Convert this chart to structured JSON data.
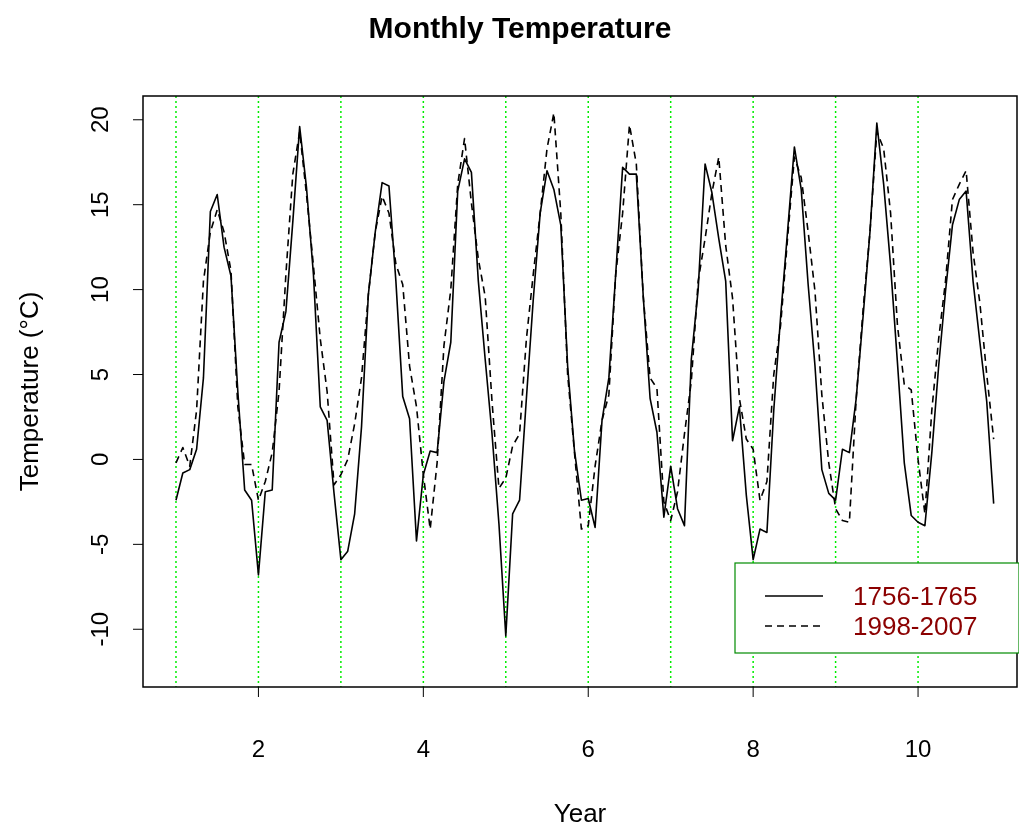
{
  "chart_data": {
    "type": "line",
    "title": "Monthly Temperature",
    "xlabel": "Year",
    "ylabel": "Temperature (°C)",
    "x": [
      1,
      1.083,
      1.167,
      1.25,
      1.333,
      1.417,
      1.5,
      1.583,
      1.667,
      1.75,
      1.833,
      1.917,
      2,
      2.083,
      2.167,
      2.25,
      2.333,
      2.417,
      2.5,
      2.583,
      2.667,
      2.75,
      2.833,
      2.917,
      3,
      3.083,
      3.167,
      3.25,
      3.333,
      3.417,
      3.5,
      3.583,
      3.667,
      3.75,
      3.833,
      3.917,
      4,
      4.083,
      4.167,
      4.25,
      4.333,
      4.417,
      4.5,
      4.583,
      4.667,
      4.75,
      4.833,
      4.917,
      5,
      5.083,
      5.167,
      5.25,
      5.333,
      5.417,
      5.5,
      5.583,
      5.667,
      5.75,
      5.833,
      5.917,
      6,
      6.083,
      6.167,
      6.25,
      6.333,
      6.417,
      6.5,
      6.583,
      6.667,
      6.75,
      6.833,
      6.917,
      7,
      7.083,
      7.167,
      7.25,
      7.333,
      7.417,
      7.5,
      7.583,
      7.667,
      7.75,
      7.833,
      7.917,
      8,
      8.083,
      8.167,
      8.25,
      8.333,
      8.417,
      8.5,
      8.583,
      8.667,
      8.75,
      8.833,
      8.917,
      9,
      9.083,
      9.167,
      9.25,
      9.333,
      9.417,
      9.5,
      9.583,
      9.667,
      9.75,
      9.833,
      9.917,
      10,
      10.083,
      10.167,
      10.25,
      10.333,
      10.417,
      10.5,
      10.583,
      10.667,
      10.75,
      10.833,
      10.917
    ],
    "series": [
      {
        "name": "1756-1765",
        "color": "#000000",
        "line_style": "solid",
        "values": [
          -2.4,
          -0.8,
          -0.6,
          0.6,
          4.8,
          14.6,
          15.6,
          12.5,
          10.8,
          4,
          -1.8,
          -2.4,
          -6.8,
          -1.9,
          -1.8,
          6.9,
          8.7,
          14,
          19.6,
          16,
          10.9,
          3.1,
          2.3,
          -2,
          -5.9,
          -5.4,
          -3.2,
          1.9,
          9.7,
          13.4,
          16.3,
          16.1,
          10.5,
          3.7,
          2.4,
          -4.8,
          -0.9,
          0.5,
          0.4,
          4.6,
          6.9,
          15.8,
          17.7,
          16.9,
          10.5,
          5.9,
          1.5,
          -3.8,
          -10.4,
          -3.2,
          -2.4,
          3.6,
          9.4,
          14.5,
          17,
          15.9,
          13.8,
          5.5,
          0.5,
          -2.4,
          -2.3,
          -4,
          2.3,
          4.8,
          10.9,
          17.2,
          16.8,
          16.8,
          9.6,
          3.6,
          1.6,
          -3.4,
          -0.4,
          -2.9,
          -3.9,
          5.9,
          10,
          17.4,
          15.7,
          13,
          10.5,
          1.1,
          3.1,
          -2.1,
          -5.9,
          -4.1,
          -4.3,
          2.9,
          8.4,
          13.4,
          18.4,
          15.9,
          10.3,
          5.5,
          -0.6,
          -2,
          -2.4,
          0.6,
          0.4,
          3.6,
          8.4,
          13.4,
          19.8,
          16.2,
          11.4,
          5.7,
          -0.2,
          -3.3,
          -3.7,
          -3.9,
          0.4,
          5.5,
          9.9,
          13.8,
          15.3,
          15.8,
          10.5,
          6.9,
          3.4,
          -2.6
        ]
      },
      {
        "name": "1998-2007",
        "color": "#000000",
        "line_style": "dashed",
        "values": [
          -0.2,
          0.7,
          -0.4,
          2.9,
          10.5,
          13.4,
          14.7,
          13.4,
          11.1,
          3.1,
          -0.3,
          -0.3,
          -2.4,
          -1.3,
          0.4,
          4,
          10.9,
          16.8,
          19.3,
          15.6,
          11.4,
          7.1,
          4,
          -1.5,
          -0.9,
          0,
          2.1,
          4.8,
          9.7,
          13.4,
          15.5,
          14.5,
          11.5,
          10.3,
          5.5,
          3.1,
          -0.9,
          -4.1,
          -0.2,
          6.7,
          10,
          16.2,
          18.9,
          15.1,
          11.8,
          9.6,
          3.4,
          -1.7,
          -1.1,
          0.8,
          1.5,
          7.1,
          10.9,
          14.5,
          18.3,
          20.4,
          14.5,
          5,
          0.4,
          -4.1,
          -3.9,
          -0.4,
          2.3,
          3.8,
          10.9,
          14.5,
          19.7,
          17.4,
          9.6,
          4.8,
          4.2,
          -2.5,
          -3.6,
          -1.9,
          1.5,
          4.6,
          10.5,
          13,
          15.7,
          17.8,
          12.6,
          9.5,
          3.6,
          1.2,
          0.6,
          -2.4,
          -1.3,
          5,
          7.9,
          13,
          17.8,
          16.6,
          13.4,
          9.9,
          3.8,
          -0.2,
          -2.9,
          -3.6,
          -3.7,
          3.6,
          8.8,
          13.4,
          19.3,
          18.3,
          14.5,
          7.9,
          4.4,
          4.1,
          0,
          -3.2,
          2.9,
          7.1,
          10.5,
          15.3,
          16.2,
          17,
          12.2,
          9.2,
          5,
          1.2
        ]
      }
    ],
    "xlim": [
      0.6,
      11.2
    ],
    "xticks": [
      2,
      4,
      6,
      8,
      10
    ],
    "ylim": [
      -13.4,
      21.4
    ],
    "yticks": [
      -10,
      -5,
      0,
      5,
      10,
      15,
      20
    ],
    "ref_lines": [
      {
        "axis": "x",
        "value": 1,
        "color": "#00ee00",
        "line_style": "dotted"
      },
      {
        "axis": "x",
        "value": 2,
        "color": "#00ee00",
        "line_style": "dotted"
      },
      {
        "axis": "x",
        "value": 3,
        "color": "#00ee00",
        "line_style": "dotted"
      },
      {
        "axis": "x",
        "value": 4,
        "color": "#00ee00",
        "line_style": "dotted"
      },
      {
        "axis": "x",
        "value": 5,
        "color": "#00ee00",
        "line_style": "dotted"
      },
      {
        "axis": "x",
        "value": 6,
        "color": "#00ee00",
        "line_style": "dotted"
      },
      {
        "axis": "x",
        "value": 7,
        "color": "#00ee00",
        "line_style": "dotted"
      },
      {
        "axis": "x",
        "value": 8,
        "color": "#00ee00",
        "line_style": "dotted"
      },
      {
        "axis": "x",
        "value": 9,
        "color": "#00ee00",
        "line_style": "dotted"
      },
      {
        "axis": "x",
        "value": 10,
        "color": "#00ee00",
        "line_style": "dotted"
      }
    ],
    "legend": "bottom right",
    "grid": false
  }
}
